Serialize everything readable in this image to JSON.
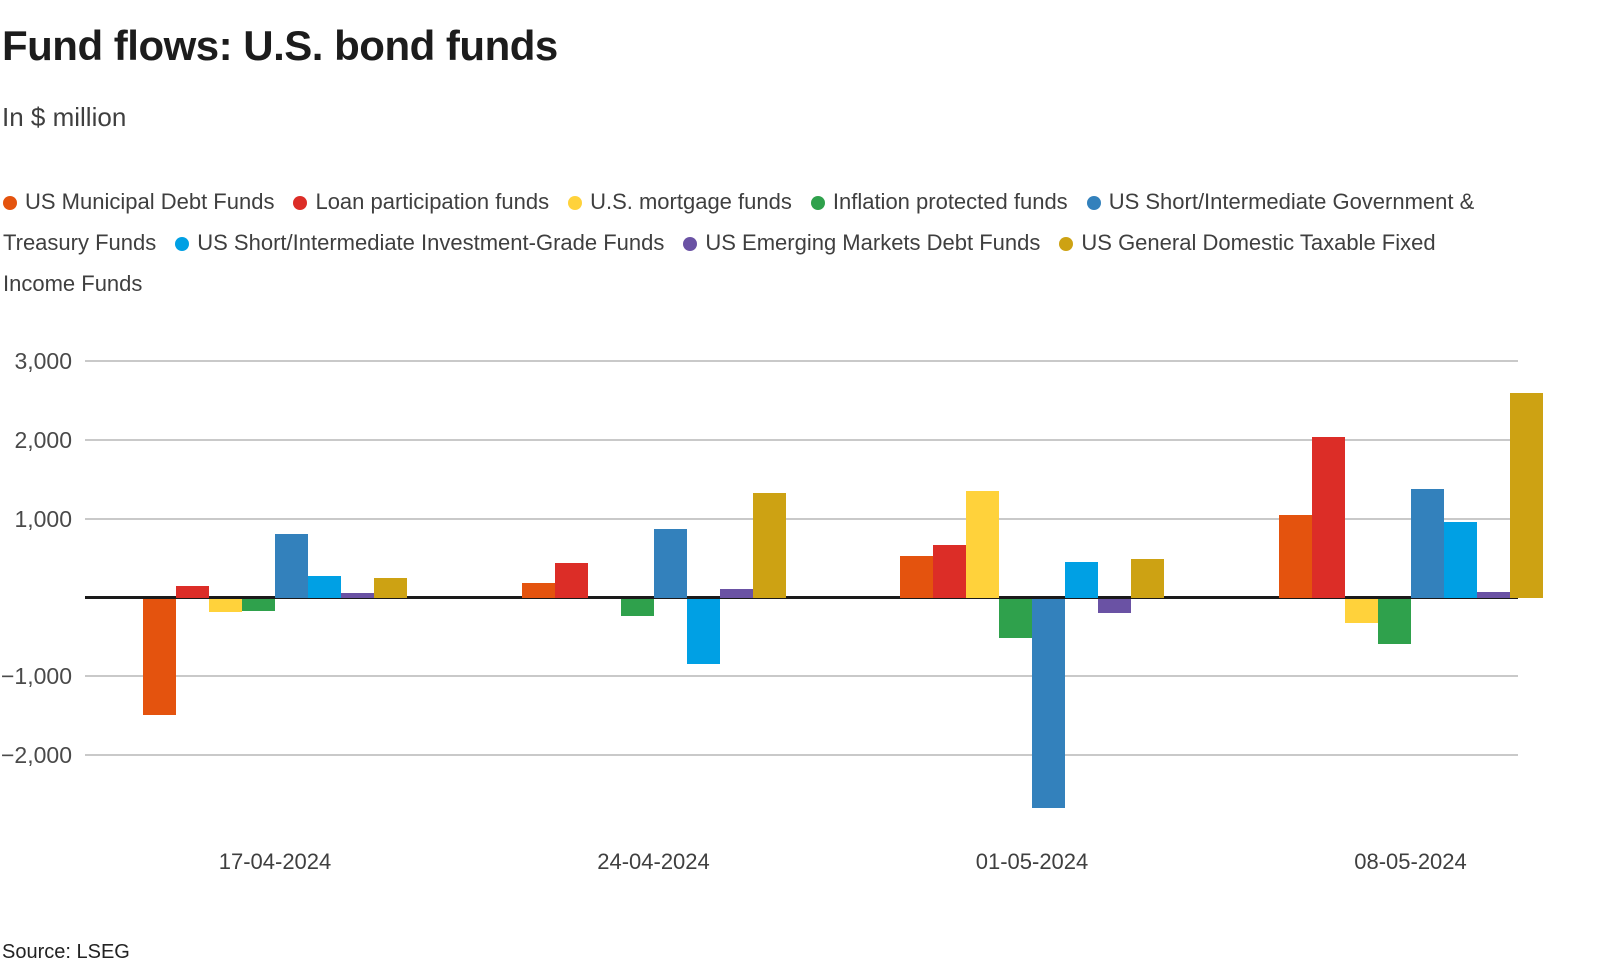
{
  "header": {
    "title": "Fund flows: U.S. bond funds",
    "subtitle": "In $ million"
  },
  "source": "Source: LSEG",
  "chart_data": {
    "type": "bar",
    "title": "Fund flows: U.S. bond funds",
    "subtitle": "In $ million",
    "unit": "$ million",
    "categories": [
      "17-04-2024",
      "24-04-2024",
      "01-05-2024",
      "08-05-2024"
    ],
    "series": [
      {
        "name": "US Municipal Debt Funds",
        "color": "#E4530E",
        "values": [
          -1480,
          190,
          540,
          1060
        ]
      },
      {
        "name": "Loan participation funds",
        "color": "#DC2D27",
        "values": [
          150,
          450,
          670,
          2050
        ]
      },
      {
        "name": "U.S. mortgage funds",
        "color": "#FFD23B",
        "values": [
          -170,
          0,
          1360,
          -310
        ]
      },
      {
        "name": "Inflation protected funds",
        "color": "#2FA14C",
        "values": [
          -150,
          -220,
          -490,
          -570
        ]
      },
      {
        "name": "US Short/Intermediate Government & Treasury Funds",
        "color": "#3381BC",
        "values": [
          810,
          880,
          -2650,
          1390
        ]
      },
      {
        "name": "US Short/Intermediate Investment-Grade Funds",
        "color": "#00A0E4",
        "values": [
          280,
          -830,
          460,
          970
        ]
      },
      {
        "name": "US Emerging Markets Debt Funds",
        "color": "#6A52A4",
        "values": [
          60,
          120,
          -180,
          80
        ]
      },
      {
        "name": "US General Domestic Taxable Fixed Income Funds",
        "color": "#CDA213",
        "values": [
          260,
          1330,
          490,
          2610
        ]
      }
    ],
    "ylim": [
      -2700,
      3200
    ],
    "yticks": [
      3000,
      2000,
      1000,
      -1000,
      -2000
    ],
    "grid": true,
    "legend_position": "top"
  }
}
